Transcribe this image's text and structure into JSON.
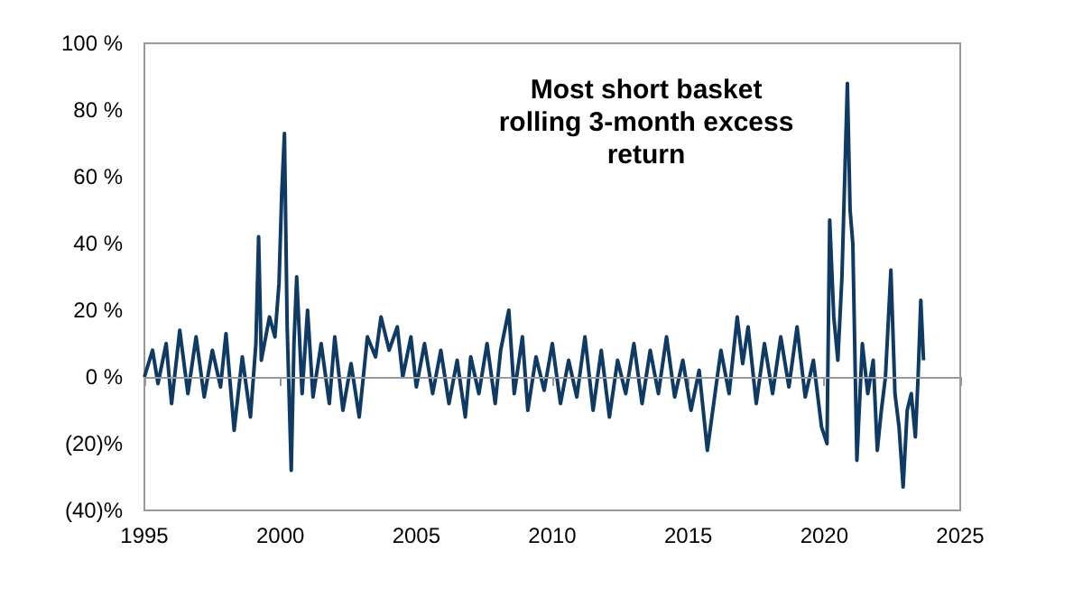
{
  "chart_data": {
    "type": "line",
    "title": "Most short basket\nrolling 3-month excess\nreturn",
    "x": [
      1995.0,
      1995.3,
      1995.5,
      1995.8,
      1996.0,
      1996.3,
      1996.6,
      1996.9,
      1997.2,
      1997.5,
      1997.8,
      1998.0,
      1998.3,
      1998.6,
      1998.9,
      1999.1,
      1999.2,
      1999.3,
      1999.6,
      1999.8,
      1999.95,
      2000.05,
      2000.15,
      2000.25,
      2000.4,
      2000.5,
      2000.6,
      2000.8,
      2001.0,
      2001.2,
      2001.5,
      2001.8,
      2002.0,
      2002.3,
      2002.6,
      2002.9,
      2003.2,
      2003.5,
      2003.7,
      2004.0,
      2004.3,
      2004.5,
      2004.8,
      2005.0,
      2005.3,
      2005.6,
      2005.9,
      2006.2,
      2006.5,
      2006.8,
      2007.0,
      2007.3,
      2007.6,
      2007.9,
      2008.1,
      2008.4,
      2008.6,
      2008.9,
      2009.1,
      2009.4,
      2009.7,
      2010.0,
      2010.3,
      2010.6,
      2010.9,
      2011.2,
      2011.5,
      2011.8,
      2012.1,
      2012.4,
      2012.7,
      2013.0,
      2013.3,
      2013.6,
      2013.9,
      2014.2,
      2014.5,
      2014.8,
      2015.1,
      2015.4,
      2015.7,
      2015.9,
      2016.2,
      2016.5,
      2016.8,
      2017.0,
      2017.2,
      2017.5,
      2017.8,
      2018.1,
      2018.4,
      2018.7,
      2019.0,
      2019.3,
      2019.6,
      2019.9,
      2020.1,
      2020.2,
      2020.35,
      2020.5,
      2020.65,
      2020.85,
      2020.95,
      2021.05,
      2021.2,
      2021.4,
      2021.6,
      2021.8,
      2021.95,
      2022.1,
      2022.25,
      2022.45,
      2022.6,
      2022.75,
      2022.9,
      2023.05,
      2023.2,
      2023.35,
      2023.45,
      2023.55,
      2023.65
    ],
    "series": [
      {
        "color": "#0f3a64",
        "values": [
          0,
          8,
          -2,
          10,
          -8,
          14,
          -5,
          12,
          -6,
          8,
          -3,
          13,
          -16,
          6,
          -12,
          10,
          42,
          5,
          18,
          12,
          28,
          55,
          73,
          15,
          -28,
          10,
          30,
          -5,
          20,
          -6,
          10,
          -8,
          12,
          -10,
          4,
          -12,
          12,
          6,
          18,
          8,
          15,
          0,
          12,
          -3,
          10,
          -5,
          8,
          -8,
          5,
          -12,
          6,
          -5,
          10,
          -8,
          8,
          20,
          -5,
          12,
          -10,
          6,
          -4,
          10,
          -8,
          5,
          -6,
          12,
          -10,
          8,
          -12,
          5,
          -5,
          10,
          -8,
          8,
          -5,
          12,
          -6,
          5,
          -10,
          2,
          -22,
          -10,
          8,
          -5,
          18,
          4,
          15,
          -8,
          10,
          -5,
          12,
          -3,
          15,
          -6,
          5,
          -15,
          -20,
          47,
          18,
          5,
          30,
          88,
          50,
          40,
          -25,
          10,
          -5,
          5,
          -22,
          -10,
          0,
          32,
          -5,
          -15,
          -33,
          -10,
          -5,
          -18,
          0,
          23,
          5
        ]
      }
    ],
    "xlim": [
      1995,
      2025
    ],
    "xticks": [
      1995,
      2000,
      2005,
      2010,
      2015,
      2020,
      2025
    ],
    "ylim": [
      -40,
      100
    ],
    "yticks": [
      {
        "value": -40,
        "label": "(40)%"
      },
      {
        "value": -20,
        "label": "(20)%"
      },
      {
        "value": 0,
        "label": "0 %"
      },
      {
        "value": 20,
        "label": "20 %"
      },
      {
        "value": 40,
        "label": "40 %"
      },
      {
        "value": 60,
        "label": "60 %"
      },
      {
        "value": 80,
        "label": "80 %"
      },
      {
        "value": 100,
        "label": "100 %"
      }
    ],
    "ref_lines": [
      {
        "axis": "y",
        "value": 0,
        "color": "#999999"
      }
    ],
    "grid": false,
    "marker": "none",
    "line_style": "solid"
  }
}
